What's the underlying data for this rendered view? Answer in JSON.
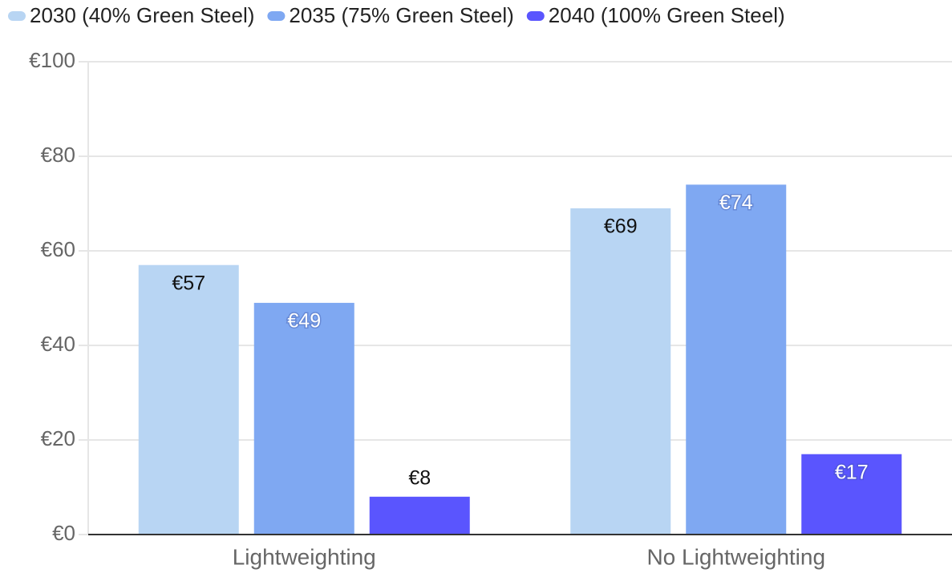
{
  "chart_data": {
    "type": "bar",
    "categories": [
      "Lightweighting",
      "No Lightweighting"
    ],
    "series": [
      {
        "name": "2030 (40% Green Steel)",
        "color": "#b8d5f3",
        "values": [
          57,
          69
        ],
        "value_labels": [
          "€57",
          "€69"
        ]
      },
      {
        "name": "2035 (75% Green Steel)",
        "color": "#7fa8f2",
        "values": [
          49,
          74
        ],
        "value_labels": [
          "€49",
          "€74"
        ]
      },
      {
        "name": "2040 (100% Green Steel)",
        "color": "#5a55fe",
        "values": [
          8,
          17
        ],
        "value_labels": [
          "€8",
          "€17"
        ]
      }
    ],
    "ylim": [
      0,
      100
    ],
    "yticks": [
      {
        "value": 0,
        "label": "€0"
      },
      {
        "value": 20,
        "label": "€20"
      },
      {
        "value": 40,
        "label": "€40"
      },
      {
        "value": 60,
        "label": "€60"
      },
      {
        "value": 80,
        "label": "€80"
      },
      {
        "value": 100,
        "label": "€100"
      }
    ],
    "grid": true,
    "legend": "top-left"
  }
}
